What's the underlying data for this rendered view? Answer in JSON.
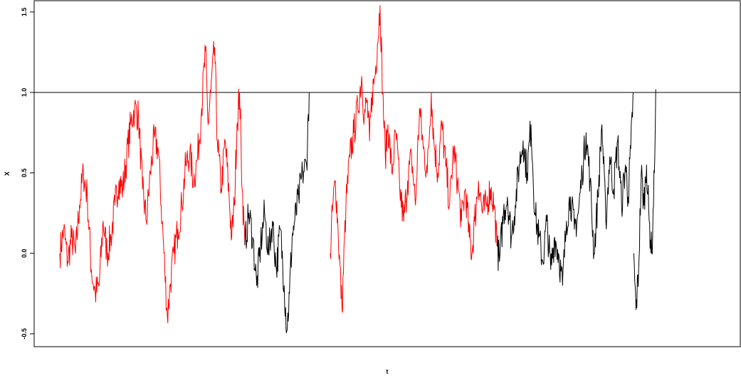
{
  "chart_data": {
    "type": "line",
    "title": "",
    "xlabel": "t",
    "ylabel": "X",
    "ylim": [
      -0.58,
      1.57
    ],
    "yticks": [
      -0.5,
      0.0,
      0.5,
      1.0,
      1.5
    ],
    "ytick_labels": [
      "-0.5",
      "0.0",
      "0.5",
      "1.0",
      "1.5"
    ],
    "xlim": [
      0,
      1000
    ],
    "grid": false,
    "legend": "none",
    "hline": 1.0,
    "colors": {
      "red_series": "#ff0000",
      "black_series": "#000000",
      "reference_line": "#000000",
      "axes": "#000000"
    },
    "series": [
      {
        "color": "#ff0000",
        "segments": [
          [
            [
              0,
              0.0
            ],
            [
              6,
              0.15
            ],
            [
              12,
              -0.05
            ],
            [
              18,
              0.1
            ],
            [
              24,
              0.0
            ],
            [
              30,
              0.3
            ],
            [
              36,
              0.5
            ],
            [
              42,
              0.35
            ],
            [
              48,
              -0.1
            ],
            [
              54,
              -0.25
            ],
            [
              60,
              -0.2
            ],
            [
              66,
              0.2
            ],
            [
              72,
              0.0
            ],
            [
              78,
              0.1
            ],
            [
              84,
              0.3
            ],
            [
              90,
              0.45
            ],
            [
              96,
              0.4
            ],
            [
              102,
              0.6
            ],
            [
              108,
              0.8
            ],
            [
              114,
              0.9
            ],
            [
              120,
              0.85
            ],
            [
              126,
              0.4
            ],
            [
              132,
              0.2
            ],
            [
              138,
              0.5
            ],
            [
              144,
              0.72
            ],
            [
              150,
              0.65
            ],
            [
              156,
              0.2
            ],
            [
              160,
              -0.1
            ],
            [
              164,
              -0.4
            ],
            [
              168,
              -0.2
            ],
            [
              174,
              0.0
            ],
            [
              180,
              0.15
            ],
            [
              186,
              0.3
            ],
            [
              192,
              0.55
            ],
            [
              198,
              0.62
            ],
            [
              204,
              0.45
            ],
            [
              210,
              0.6
            ],
            [
              216,
              0.9
            ],
            [
              222,
              1.26
            ],
            [
              226,
              0.8
            ],
            [
              230,
              1.0
            ],
            [
              236,
              1.28
            ],
            [
              240,
              0.7
            ],
            [
              246,
              0.4
            ],
            [
              252,
              0.7
            ],
            [
              258,
              0.35
            ],
            [
              262,
              0.1
            ],
            [
              266,
              0.3
            ],
            [
              270,
              0.8
            ],
            [
              274,
              1.0
            ],
            [
              278,
              0.4
            ],
            [
              282,
              0.05
            ]
          ],
          [
            [
              412,
              0.0
            ],
            [
              416,
              0.3
            ],
            [
              420,
              0.45
            ],
            [
              424,
              0.15
            ],
            [
              430,
              -0.35
            ],
            [
              436,
              0.3
            ],
            [
              442,
              0.6
            ],
            [
              448,
              0.75
            ],
            [
              454,
              0.9
            ],
            [
              460,
              1.1
            ],
            [
              464,
              0.85
            ],
            [
              468,
              0.95
            ],
            [
              472,
              0.7
            ],
            [
              476,
              1.0
            ],
            [
              480,
              1.1
            ],
            [
              484,
              1.3
            ],
            [
              488,
              1.54
            ],
            [
              492,
              1.0
            ],
            [
              496,
              0.6
            ],
            [
              500,
              0.8
            ],
            [
              506,
              0.5
            ],
            [
              512,
              0.75
            ],
            [
              518,
              0.4
            ],
            [
              524,
              0.2
            ],
            [
              530,
              0.45
            ],
            [
              536,
              0.6
            ],
            [
              542,
              0.3
            ],
            [
              548,
              0.9
            ],
            [
              554,
              0.65
            ],
            [
              560,
              0.5
            ],
            [
              566,
              1.0
            ],
            [
              570,
              0.7
            ],
            [
              576,
              0.5
            ],
            [
              582,
              0.8
            ],
            [
              588,
              0.55
            ],
            [
              594,
              0.3
            ],
            [
              600,
              0.65
            ],
            [
              606,
              0.45
            ],
            [
              612,
              0.2
            ],
            [
              618,
              0.4
            ],
            [
              624,
              0.1
            ],
            [
              628,
              0.0
            ],
            [
              632,
              0.2
            ],
            [
              638,
              0.45
            ],
            [
              644,
              0.25
            ],
            [
              650,
              0.3
            ],
            [
              656,
              0.4
            ],
            [
              662,
              0.3
            ],
            [
              666,
              0.05
            ]
          ]
        ]
      },
      {
        "color": "#000000",
        "segments": [
          [
            [
              282,
              0.05
            ],
            [
              288,
              0.25
            ],
            [
              294,
              0.1
            ],
            [
              300,
              -0.2
            ],
            [
              306,
              0.05
            ],
            [
              312,
              0.25
            ],
            [
              318,
              0.0
            ],
            [
              324,
              0.2
            ],
            [
              330,
              -0.1
            ],
            [
              336,
              0.15
            ],
            [
              342,
              -0.2
            ],
            [
              346,
              -0.48
            ],
            [
              350,
              -0.25
            ],
            [
              354,
              0.1
            ],
            [
              358,
              0.2
            ],
            [
              364,
              0.35
            ],
            [
              370,
              0.5
            ],
            [
              376,
              0.55
            ],
            [
              380,
              1.0
            ]
          ],
          [
            [
              666,
              0.05
            ],
            [
              670,
              -0.05
            ],
            [
              676,
              0.25
            ],
            [
              682,
              0.35
            ],
            [
              688,
              0.1
            ],
            [
              694,
              0.3
            ],
            [
              700,
              0.55
            ],
            [
              706,
              0.7
            ],
            [
              712,
              0.5
            ],
            [
              718,
              0.8
            ],
            [
              724,
              0.25
            ],
            [
              730,
              0.1
            ],
            [
              736,
              -0.05
            ],
            [
              742,
              0.2
            ],
            [
              748,
              -0.1
            ],
            [
              754,
              0.1
            ],
            [
              760,
              0.0
            ],
            [
              766,
              -0.2
            ],
            [
              772,
              0.2
            ],
            [
              778,
              0.35
            ],
            [
              784,
              0.15
            ],
            [
              790,
              0.25
            ],
            [
              796,
              0.5
            ],
            [
              802,
              0.75
            ],
            [
              808,
              0.45
            ],
            [
              814,
              0.0
            ],
            [
              820,
              0.35
            ],
            [
              826,
              0.8
            ],
            [
              832,
              0.2
            ],
            [
              838,
              0.6
            ],
            [
              844,
              0.4
            ],
            [
              850,
              0.7
            ],
            [
              856,
              0.3
            ],
            [
              862,
              0.55
            ],
            [
              866,
              0.35
            ],
            [
              870,
              0.65
            ],
            [
              874,
              1.0
            ]
          ],
          [
            [
              874,
              0.0
            ],
            [
              878,
              -0.35
            ],
            [
              882,
              -0.1
            ],
            [
              886,
              0.5
            ],
            [
              890,
              0.3
            ],
            [
              894,
              0.55
            ],
            [
              898,
              0.2
            ],
            [
              902,
              0.0
            ],
            [
              906,
              0.5
            ],
            [
              908,
              1.02
            ]
          ]
        ]
      }
    ]
  }
}
